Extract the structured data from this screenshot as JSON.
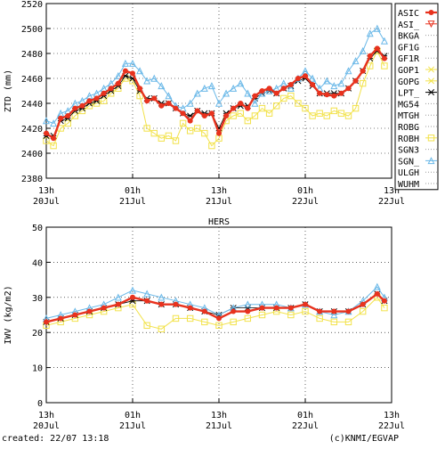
{
  "footer": {
    "created": "created: 22/07 13:18",
    "credit": "(c)KNMI/EGVAP"
  },
  "colors": {
    "ASIC": "#e8321e",
    "ASI_": "#e8321e",
    "GOP1": "#f2e24a",
    "GOPG": "#f2e24a",
    "LPT_": "#000000",
    "ROBH": "#f2e24a",
    "SGN_": "#6ab8e8",
    "thin": "#9a9a9a"
  },
  "chart_data": [
    {
      "type": "line",
      "title": "",
      "ylabel": "ZTD (mm)",
      "xlabel": "",
      "ylim": [
        2380,
        2520
      ],
      "yticks": [
        2380,
        2400,
        2420,
        2440,
        2460,
        2480,
        2500,
        2520
      ],
      "xlim": [
        13,
        61
      ],
      "xticks": [
        {
          "x": 13,
          "line1": "13h",
          "line2": "20Jul"
        },
        {
          "x": 25,
          "line1": "01h",
          "line2": "21Jul"
        },
        {
          "x": 37,
          "line1": "13h",
          "line2": "21Jul"
        },
        {
          "x": 49,
          "line1": "01h",
          "line2": "22Jul"
        },
        {
          "x": 61,
          "line1": "13h",
          "line2": "22Jul"
        }
      ],
      "grid": true,
      "legend_position": "right",
      "legend": [
        {
          "name": "ASIC",
          "style": "thick-dot"
        },
        {
          "name": "ASI_",
          "style": "triangle-down"
        },
        {
          "name": "BKGA",
          "style": "dotted"
        },
        {
          "name": "GF1G",
          "style": "dotted"
        },
        {
          "name": "GF1R",
          "style": "dotted"
        },
        {
          "name": "GOP1",
          "style": "star"
        },
        {
          "name": "GOPG",
          "style": "x"
        },
        {
          "name": "LPT_",
          "style": "asterisk"
        },
        {
          "name": "MG54",
          "style": "dotted"
        },
        {
          "name": "MTGH",
          "style": "dotted"
        },
        {
          "name": "ROBG",
          "style": "dotted"
        },
        {
          "name": "ROBH",
          "style": "square"
        },
        {
          "name": "SGN3",
          "style": "dotted"
        },
        {
          "name": "SGN_",
          "style": "triangle"
        },
        {
          "name": "ULGH",
          "style": "dotted"
        },
        {
          "name": "WUHM",
          "style": "dotted"
        }
      ],
      "series": [
        {
          "name": "ASIC",
          "x": [
            13,
            14,
            15,
            16,
            17,
            18,
            19,
            20,
            21,
            22,
            23,
            24,
            25,
            26,
            27,
            28,
            29,
            30,
            31,
            32,
            33,
            34,
            35,
            36,
            37,
            38,
            39,
            40,
            41,
            42,
            43,
            44,
            45,
            46,
            47,
            48,
            49,
            50,
            51,
            52,
            53,
            54,
            55,
            56,
            57,
            58,
            59,
            60
          ],
          "y": [
            2416,
            2412,
            2428,
            2430,
            2436,
            2438,
            2442,
            2444,
            2448,
            2452,
            2456,
            2466,
            2464,
            2452,
            2442,
            2444,
            2438,
            2440,
            2436,
            2432,
            2426,
            2434,
            2430,
            2432,
            2416,
            2430,
            2436,
            2440,
            2436,
            2446,
            2450,
            2452,
            2448,
            2452,
            2455,
            2460,
            2462,
            2455,
            2448,
            2447,
            2446,
            2448,
            2452,
            2458,
            2466,
            2478,
            2484,
            2476
          ]
        },
        {
          "name": "SGN_",
          "x": [
            13,
            14,
            15,
            16,
            17,
            18,
            19,
            20,
            21,
            22,
            23,
            24,
            25,
            26,
            27,
            28,
            29,
            30,
            31,
            32,
            33,
            34,
            35,
            36,
            37,
            38,
            39,
            40,
            41,
            42,
            43,
            44,
            45,
            46,
            47,
            48,
            49,
            50,
            51,
            52,
            53,
            54,
            55,
            56,
            57,
            58,
            59,
            60
          ],
          "y": [
            2426,
            2424,
            2432,
            2434,
            2440,
            2442,
            2446,
            2448,
            2452,
            2456,
            2462,
            2472,
            2472,
            2466,
            2458,
            2460,
            2454,
            2446,
            2438,
            2436,
            2440,
            2448,
            2452,
            2454,
            2440,
            2448,
            2452,
            2456,
            2448,
            2440,
            2448,
            2450,
            2452,
            2456,
            2452,
            2460,
            2466,
            2460,
            2452,
            2458,
            2454,
            2456,
            2466,
            2474,
            2482,
            2496,
            2500,
            2490
          ]
        },
        {
          "name": "ROBH",
          "x": [
            13,
            14,
            15,
            16,
            17,
            18,
            19,
            20,
            21,
            22,
            23,
            24,
            25,
            26,
            27,
            28,
            29,
            30,
            31,
            32,
            33,
            34,
            35,
            36,
            37,
            38,
            39,
            40,
            41,
            42,
            43,
            44,
            45,
            46,
            47,
            48,
            49,
            50,
            51,
            52,
            53,
            54,
            55,
            56,
            57,
            58,
            59,
            60
          ],
          "y": [
            2410,
            2406,
            2420,
            2424,
            2430,
            2434,
            2438,
            2440,
            2442,
            2448,
            2452,
            2460,
            2458,
            2446,
            2420,
            2416,
            2412,
            2414,
            2410,
            2424,
            2418,
            2420,
            2416,
            2406,
            2412,
            2426,
            2430,
            2432,
            2426,
            2430,
            2436,
            2432,
            2438,
            2444,
            2446,
            2440,
            2436,
            2430,
            2432,
            2430,
            2434,
            2432,
            2430,
            2436,
            2456,
            2470,
            2482,
            2470
          ]
        },
        {
          "name": "LPT_",
          "x": [
            13,
            14,
            15,
            16,
            17,
            18,
            19,
            20,
            21,
            22,
            23,
            24,
            25,
            26,
            27,
            28,
            29,
            30,
            31,
            32,
            33,
            34,
            35,
            36,
            37,
            38,
            39,
            40,
            41,
            42,
            43,
            44,
            45,
            46,
            47,
            48,
            49,
            50,
            51,
            52,
            53,
            54,
            55,
            56,
            57,
            58,
            59,
            60
          ],
          "y": [
            2414,
            2414,
            2426,
            2428,
            2434,
            2436,
            2440,
            2442,
            2446,
            2450,
            2454,
            2462,
            2460,
            2450,
            2444,
            2444,
            2440,
            2440,
            2436,
            2432,
            2430,
            2434,
            2432,
            2432,
            2420,
            2432,
            2436,
            2438,
            2438,
            2444,
            2448,
            2450,
            2448,
            2452,
            2454,
            2458,
            2460,
            2454,
            2448,
            2448,
            2448,
            2448,
            2452,
            2458,
            2466,
            2476,
            2482,
            2478
          ]
        }
      ]
    },
    {
      "type": "line",
      "title": "HERS",
      "ylabel": "IWV (kg/m2)",
      "xlabel": "",
      "ylim": [
        0,
        50
      ],
      "yticks": [
        0,
        10,
        20,
        30,
        40,
        50
      ],
      "xlim": [
        13,
        61
      ],
      "xticks": [
        {
          "x": 13,
          "line1": "13h",
          "line2": "20Jul"
        },
        {
          "x": 25,
          "line1": "01h",
          "line2": "21Jul"
        },
        {
          "x": 37,
          "line1": "13h",
          "line2": "21Jul"
        },
        {
          "x": 49,
          "line1": "01h",
          "line2": "22Jul"
        },
        {
          "x": 61,
          "line1": "13h",
          "line2": "22Jul"
        }
      ],
      "grid": true,
      "series": [
        {
          "name": "ASIC",
          "x": [
            13,
            15,
            17,
            19,
            21,
            23,
            25,
            27,
            29,
            31,
            33,
            35,
            37,
            39,
            41,
            43,
            45,
            47,
            49,
            51,
            53,
            55,
            57,
            59,
            60
          ],
          "y": [
            23,
            24,
            25,
            26,
            27,
            28,
            30,
            29,
            28,
            28,
            27,
            26,
            24,
            26,
            26,
            27,
            27,
            27,
            28,
            26,
            26,
            26,
            28,
            31,
            29
          ]
        },
        {
          "name": "SGN_",
          "x": [
            13,
            15,
            17,
            19,
            21,
            23,
            25,
            27,
            29,
            31,
            33,
            35,
            37,
            39,
            41,
            43,
            45,
            47,
            49,
            51,
            53,
            55,
            57,
            59,
            60
          ],
          "y": [
            24,
            25,
            26,
            27,
            28,
            30,
            32,
            31,
            30,
            29,
            28,
            27,
            25,
            27,
            28,
            28,
            28,
            27,
            28,
            26,
            25,
            26,
            29,
            33,
            30
          ]
        },
        {
          "name": "ROBH",
          "x": [
            13,
            15,
            17,
            19,
            21,
            23,
            25,
            27,
            29,
            31,
            33,
            35,
            37,
            39,
            41,
            43,
            45,
            47,
            49,
            51,
            53,
            55,
            57,
            59,
            60
          ],
          "y": [
            22,
            23,
            24,
            25,
            26,
            27,
            28,
            22,
            21,
            24,
            24,
            23,
            22,
            23,
            24,
            25,
            26,
            25,
            26,
            24,
            23,
            23,
            26,
            30,
            27
          ]
        },
        {
          "name": "LPT_",
          "x": [
            13,
            15,
            17,
            19,
            21,
            23,
            25,
            27,
            29,
            31,
            33,
            35,
            37,
            39,
            41,
            43,
            45,
            47,
            49,
            51,
            53,
            55,
            57,
            59,
            60
          ],
          "y": [
            23,
            24,
            25,
            26,
            27,
            28,
            29,
            29,
            28,
            28,
            27,
            26,
            25,
            27,
            27,
            27,
            27,
            27,
            28,
            26,
            26,
            26,
            28,
            31,
            29
          ]
        }
      ]
    }
  ]
}
